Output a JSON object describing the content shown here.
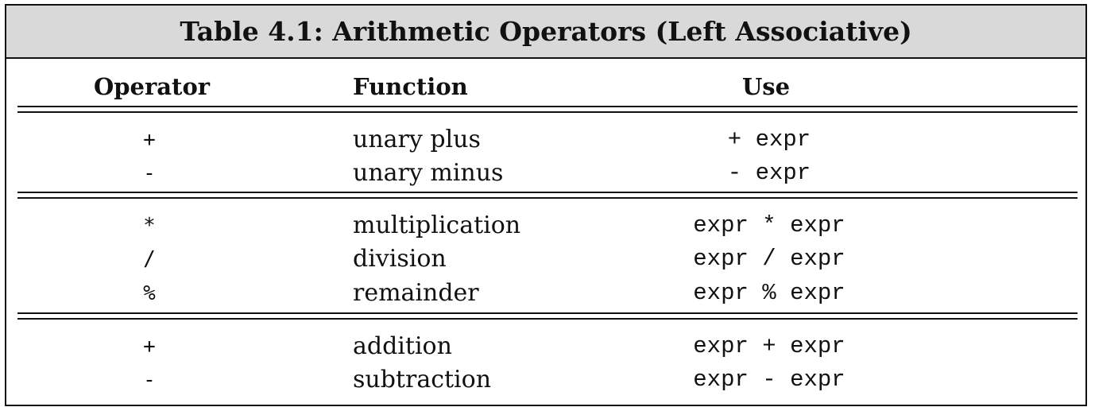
{
  "table": {
    "title": "Table 4.1: Arithmetic Operators (Left Associative)",
    "headers": {
      "operator": "Operator",
      "function": "Function",
      "use": "Use"
    },
    "rows": [
      {
        "operator": "+",
        "function": "unary plus",
        "use": "+ expr"
      },
      {
        "operator": "-",
        "function": "unary minus",
        "use": "- expr"
      },
      {
        "operator": "*",
        "function": "multiplication",
        "use": "expr * expr"
      },
      {
        "operator": "/",
        "function": "division",
        "use": "expr / expr"
      },
      {
        "operator": "%",
        "function": "remainder",
        "use": "expr % expr"
      },
      {
        "operator": "+",
        "function": "addition",
        "use": "expr + expr"
      },
      {
        "operator": "-",
        "function": "subtraction",
        "use": "expr - expr"
      }
    ]
  }
}
